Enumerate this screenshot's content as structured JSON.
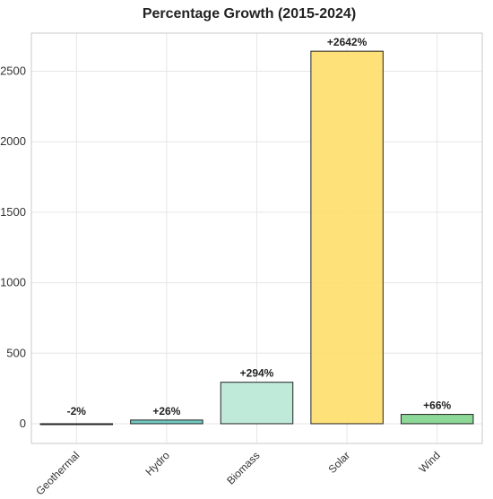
{
  "chart_data": {
    "type": "bar",
    "title": "Percentage Growth (2015-2024)",
    "xlabel": "",
    "ylabel": "",
    "categories": [
      "Geothermal",
      "Hydro",
      "Biomass",
      "Solar",
      "Wind"
    ],
    "values": [
      -2,
      26,
      294,
      2642,
      66
    ],
    "data_labels": [
      "-2%",
      "+26%",
      "+294%",
      "+2642%",
      "+66%"
    ],
    "colors": [
      "#d0d0d0",
      "#5fc4b9",
      "#b8e8d6",
      "#ffde6a",
      "#7fd48c"
    ],
    "ylim": [
      -140,
      2770
    ],
    "yticks": [
      0,
      500,
      1000,
      1500,
      2000,
      2500
    ],
    "grid": true,
    "legend": "none"
  }
}
